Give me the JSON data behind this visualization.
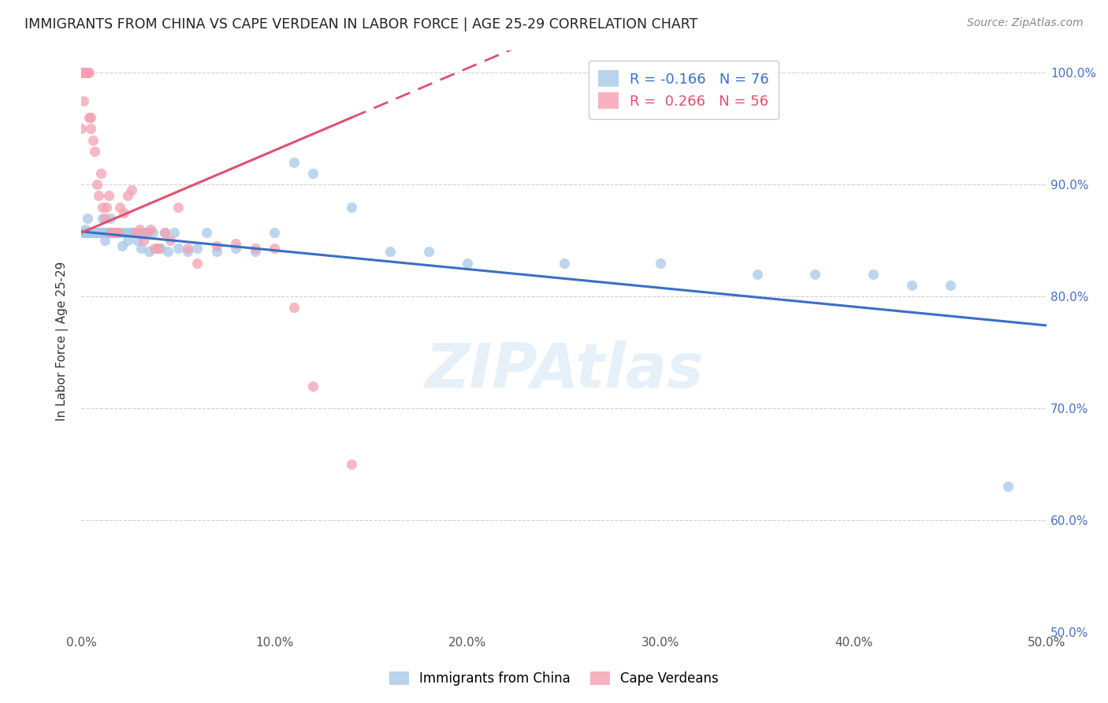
{
  "title": "IMMIGRANTS FROM CHINA VS CAPE VERDEAN IN LABOR FORCE | AGE 25-29 CORRELATION CHART",
  "source": "Source: ZipAtlas.com",
  "ylabel": "In Labor Force | Age 25-29",
  "x_min": 0.0,
  "x_max": 0.5,
  "y_min": 0.5,
  "y_max": 1.02,
  "x_ticks": [
    0.0,
    0.1,
    0.2,
    0.3,
    0.4,
    0.5
  ],
  "x_tick_labels": [
    "0.0%",
    "10.0%",
    "20.0%",
    "30.0%",
    "40.0%",
    "50.0%"
  ],
  "y_ticks": [
    0.5,
    0.6,
    0.7,
    0.8,
    0.9,
    1.0
  ],
  "y_tick_labels_right": [
    "50.0%",
    "60.0%",
    "70.0%",
    "80.0%",
    "90.0%",
    "100.0%"
  ],
  "legend_blue_label": "Immigrants from China",
  "legend_pink_label": "Cape Verdeans",
  "legend_blue_r": "-0.166",
  "legend_blue_n": "76",
  "legend_pink_r": "0.266",
  "legend_pink_n": "56",
  "blue_color": "#a8c8e8",
  "pink_color": "#f4a0b0",
  "blue_line_color": "#3a6fc4",
  "pink_line_color": "#e05070",
  "background_color": "#ffffff",
  "blue_scatter_x": [
    0.0,
    0.001,
    0.002,
    0.002,
    0.003,
    0.003,
    0.004,
    0.004,
    0.005,
    0.005,
    0.006,
    0.006,
    0.007,
    0.007,
    0.008,
    0.008,
    0.009,
    0.009,
    0.01,
    0.01,
    0.011,
    0.011,
    0.012,
    0.012,
    0.013,
    0.013,
    0.014,
    0.015,
    0.015,
    0.016,
    0.017,
    0.018,
    0.019,
    0.02,
    0.021,
    0.022,
    0.023,
    0.024,
    0.025,
    0.026,
    0.027,
    0.028,
    0.029,
    0.03,
    0.031,
    0.032,
    0.033,
    0.035,
    0.037,
    0.039,
    0.041,
    0.043,
    0.045,
    0.048,
    0.05,
    0.055,
    0.06,
    0.065,
    0.07,
    0.08,
    0.09,
    0.1,
    0.11,
    0.12,
    0.14,
    0.16,
    0.18,
    0.2,
    0.25,
    0.3,
    0.35,
    0.38,
    0.41,
    0.43,
    0.45,
    0.48
  ],
  "blue_scatter_y": [
    0.857,
    0.857,
    0.857,
    0.86,
    0.857,
    0.87,
    0.857,
    0.857,
    0.857,
    0.857,
    0.857,
    0.857,
    0.857,
    0.857,
    0.857,
    0.857,
    0.857,
    0.857,
    0.857,
    0.857,
    0.857,
    0.87,
    0.857,
    0.85,
    0.857,
    0.857,
    0.857,
    0.87,
    0.857,
    0.857,
    0.857,
    0.857,
    0.857,
    0.857,
    0.845,
    0.857,
    0.857,
    0.85,
    0.857,
    0.857,
    0.857,
    0.857,
    0.85,
    0.857,
    0.843,
    0.857,
    0.857,
    0.84,
    0.857,
    0.843,
    0.843,
    0.857,
    0.84,
    0.857,
    0.843,
    0.84,
    0.843,
    0.857,
    0.84,
    0.843,
    0.84,
    0.857,
    0.92,
    0.91,
    0.88,
    0.84,
    0.84,
    0.83,
    0.83,
    0.83,
    0.82,
    0.82,
    0.82,
    0.81,
    0.81,
    0.63
  ],
  "pink_scatter_x": [
    0.0,
    0.0,
    0.0,
    0.0,
    0.0,
    0.0,
    0.001,
    0.001,
    0.001,
    0.002,
    0.002,
    0.002,
    0.003,
    0.003,
    0.003,
    0.004,
    0.004,
    0.005,
    0.005,
    0.006,
    0.007,
    0.008,
    0.009,
    0.01,
    0.011,
    0.012,
    0.013,
    0.014,
    0.015,
    0.016,
    0.017,
    0.018,
    0.019,
    0.02,
    0.022,
    0.024,
    0.026,
    0.028,
    0.03,
    0.032,
    0.034,
    0.036,
    0.038,
    0.04,
    0.043,
    0.046,
    0.05,
    0.055,
    0.06,
    0.07,
    0.08,
    0.09,
    0.1,
    0.11,
    0.12,
    0.14
  ],
  "pink_scatter_y": [
    1.0,
    1.0,
    1.0,
    1.0,
    1.0,
    0.95,
    1.0,
    1.0,
    0.975,
    1.0,
    1.0,
    1.0,
    1.0,
    1.0,
    1.0,
    1.0,
    0.96,
    0.96,
    0.95,
    0.94,
    0.93,
    0.9,
    0.89,
    0.91,
    0.88,
    0.87,
    0.88,
    0.89,
    0.857,
    0.857,
    0.857,
    0.857,
    0.857,
    0.88,
    0.875,
    0.89,
    0.895,
    0.857,
    0.86,
    0.85,
    0.857,
    0.86,
    0.843,
    0.843,
    0.857,
    0.85,
    0.88,
    0.843,
    0.83,
    0.845,
    0.847,
    0.843,
    0.843,
    0.79,
    0.72,
    0.65
  ],
  "blue_line_x0": 0.0,
  "blue_line_x1": 0.5,
  "blue_line_y0": 0.858,
  "blue_line_y1": 0.774,
  "pink_line_x0": 0.0,
  "pink_line_x1": 0.14,
  "pink_line_y0": 0.857,
  "pink_line_y1": 0.96
}
